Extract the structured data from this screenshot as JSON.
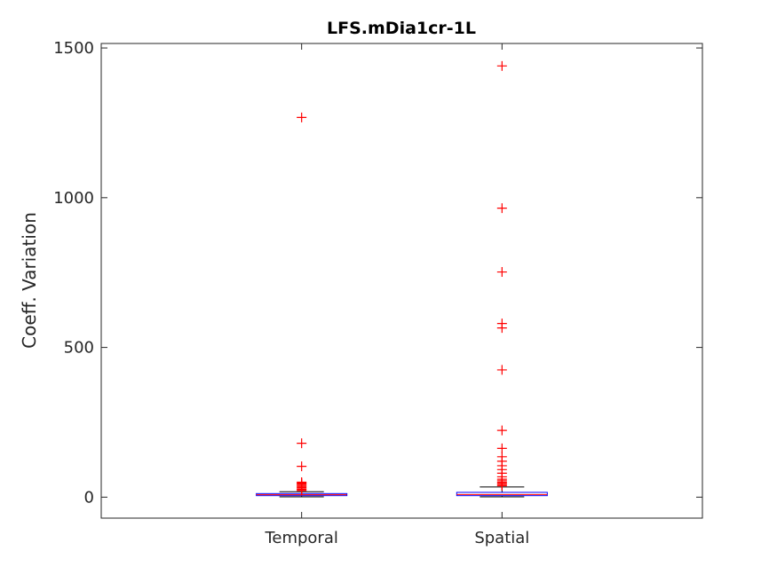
{
  "chart_data": {
    "type": "box",
    "title": "LFS.mDia1cr-1L",
    "xlabel": "",
    "ylabel": "Coeff. Variation",
    "categories": [
      "Temporal",
      "Spatial"
    ],
    "ylim": [
      -70,
      1515
    ],
    "yticks": [
      0,
      500,
      1000,
      1500
    ],
    "ytick_labels": [
      "0",
      "500",
      "1000",
      "1500"
    ],
    "grid": false,
    "colors": {
      "box": "#0000ff",
      "median": "#ff0000",
      "whisker": "#000000",
      "outlier": "#ff0000",
      "axis": "#262626"
    },
    "boxes": [
      {
        "category": "Temporal",
        "whisker_low": 1,
        "q1": 5,
        "median": 8,
        "q3": 12,
        "whisker_high": 18,
        "outliers": [
          1268,
          180,
          103,
          50,
          47,
          44,
          40,
          36,
          32,
          28,
          25,
          22
        ]
      },
      {
        "category": "Spatial",
        "whisker_low": 1,
        "q1": 5,
        "median": 9,
        "q3": 16,
        "whisker_high": 34,
        "outliers": [
          1440,
          965,
          752,
          580,
          565,
          425,
          223,
          163,
          135,
          120,
          105,
          92,
          80,
          68,
          60,
          55,
          50,
          46,
          42,
          38
        ]
      }
    ]
  }
}
